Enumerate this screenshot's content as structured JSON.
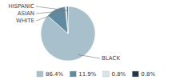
{
  "chart_data": {
    "type": "pie",
    "categories": [
      "BLACK",
      "WHITE",
      "ASIAN",
      "HISPANIC"
    ],
    "values": [
      86.4,
      11.9,
      0.8,
      0.8
    ],
    "value_labels": [
      "86.4%",
      "11.9%",
      "0.8%",
      "0.8%"
    ],
    "colors": [
      "#a8bfcc",
      "#5f8aa0",
      "#d4e5ee",
      "#1e3a4a"
    ],
    "legend": "bottom"
  }
}
